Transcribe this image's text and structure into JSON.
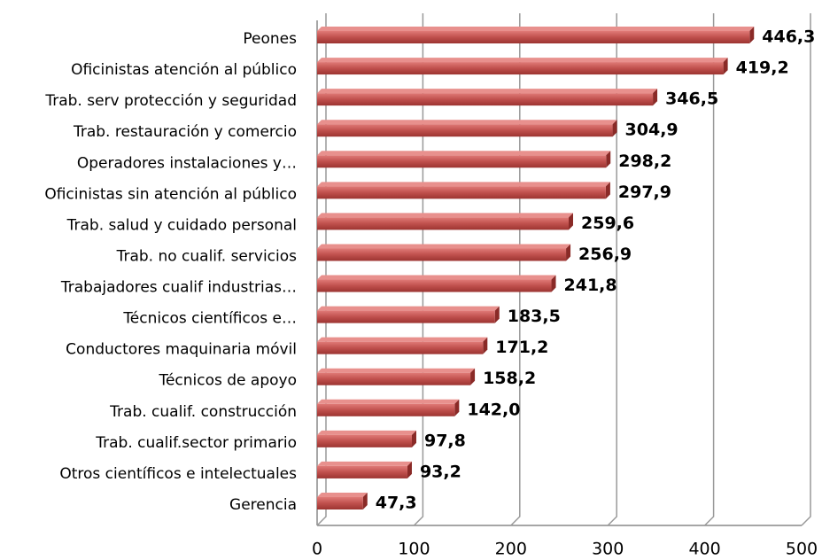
{
  "chart_data": {
    "type": "bar",
    "orientation": "horizontal",
    "categories": [
      "Peones",
      "Oficinistas atención al público",
      "Trab. serv protección y seguridad",
      "Trab. restauración y comercio",
      "Operadores instalaciones y…",
      "Oficinistas sin atención al público",
      "Trab. salud y cuidado personal",
      "Trab. no cualif. servicios",
      "Trabajadores cualif industrias…",
      "Técnicos científicos e…",
      "Conductores maquinaria móvil",
      "Técnicos de apoyo",
      "Trab. cualif. construcción",
      "Trab. cualif.sector primario",
      "Otros científicos e intelectuales",
      "Gerencia"
    ],
    "values": [
      446.3,
      419.2,
      346.5,
      304.9,
      298.2,
      297.9,
      259.6,
      256.9,
      241.8,
      183.5,
      171.2,
      158.2,
      142.0,
      97.8,
      93.2,
      47.3
    ],
    "value_labels": [
      "446,3",
      "419,2",
      "346,5",
      "304,9",
      "298,2",
      "297,9",
      "259,6",
      "256,9",
      "241,8",
      "183,5",
      "171,2",
      "158,2",
      "142,0",
      "97,8",
      "93,2",
      "47,3"
    ],
    "color": "#c0504d",
    "xlim": [
      0,
      500
    ],
    "xticks": [
      0,
      100,
      200,
      300,
      400,
      500
    ],
    "grid": true
  }
}
